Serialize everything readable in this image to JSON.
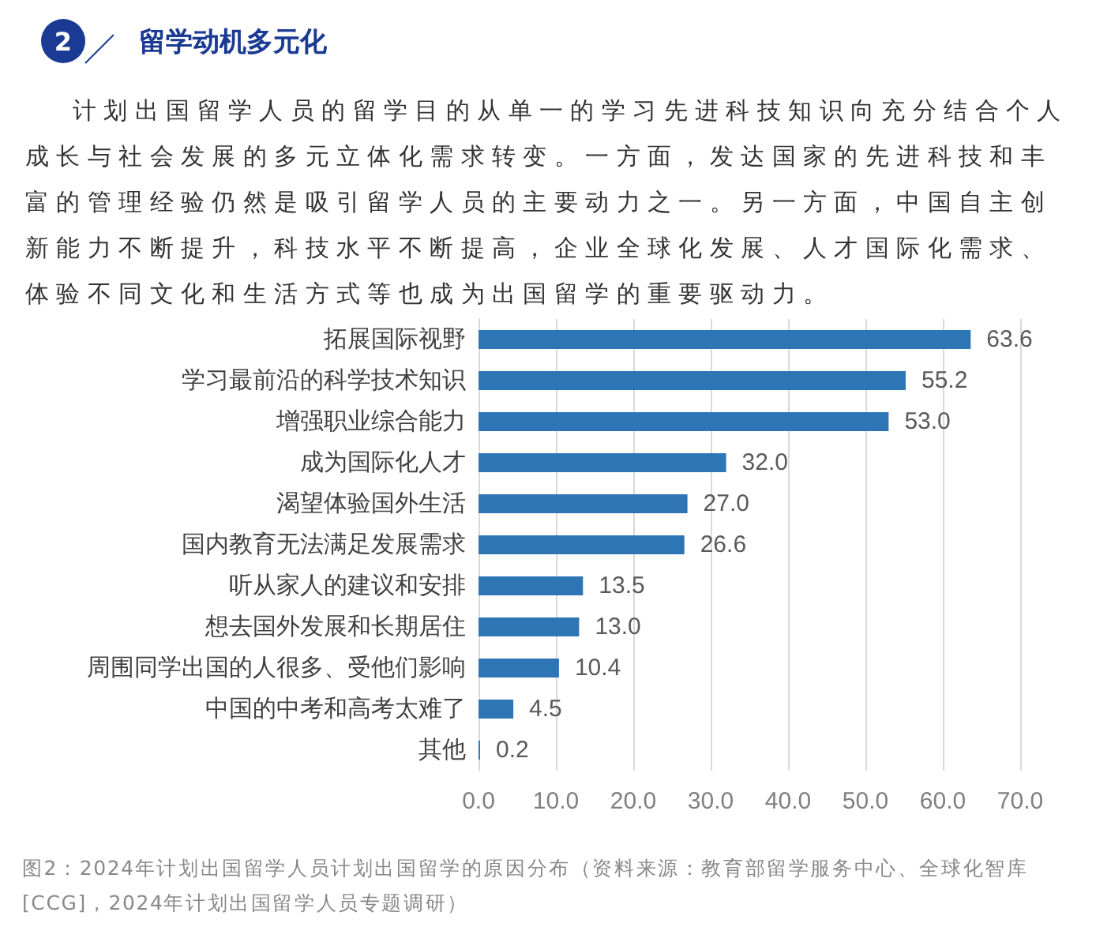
{
  "chart_data": {
    "type": "bar",
    "orientation": "horizontal",
    "title": "留学动机多元化",
    "subtitle": "计划出国留学人员的留学目的从单一的学习先进科技知识向充分结合个人成长与社会发展的多元立体化需求转变。一方面，发达国家的先进科技和丰富的管理经验仍然是吸引留学人员的主要动力之一。另一方面，中国自主创新能力不断提升，科技水平不断提高，企业全球化发展、人才国际化需求、体验不同文化和生活方式等也成为出国留学的重要驱动力。",
    "annotations": [
      "2",
      "图2：2024年计划出国留学人员计划出国留学的原因分布（资料来源：教育部留学服务中心、全球化智库[CCG]，2024年计划出国留学人员专题调研）"
    ],
    "categories": [
      "拓展国际视野",
      "学习最前沿的科学技术知识",
      "增强职业综合能力",
      "成为国际化人才",
      "渴望体验国外生活",
      "国内教育无法满足发展需求",
      "听从家人的建议和安排",
      "想去国外发展和长期居住",
      "周围同学出国的人很多、受他们影响",
      "中国的中考和高考太难了",
      "其他"
    ],
    "values": [
      63.6,
      55.2,
      53.0,
      32.0,
      27.0,
      26.6,
      13.5,
      13.0,
      10.4,
      4.5,
      0.2
    ],
    "value_labels": [
      "63.6",
      "55.2",
      "53.0",
      "32.0",
      "27.0",
      "26.6",
      "13.5",
      "13.0",
      "10.4",
      "4.5",
      "0.2"
    ],
    "color": "#2e75b6",
    "xlim": [
      0,
      70
    ],
    "xticks": [
      {
        "value": 0,
        "label": "0.0"
      },
      {
        "value": 10,
        "label": "10.0"
      },
      {
        "value": 20,
        "label": "20.0"
      },
      {
        "value": 30,
        "label": "30.0"
      },
      {
        "value": 40,
        "label": "40.0"
      },
      {
        "value": 50,
        "label": "50.0"
      },
      {
        "value": 60,
        "label": "60.0"
      },
      {
        "value": 70,
        "label": "70.0"
      }
    ],
    "grid": "x"
  }
}
